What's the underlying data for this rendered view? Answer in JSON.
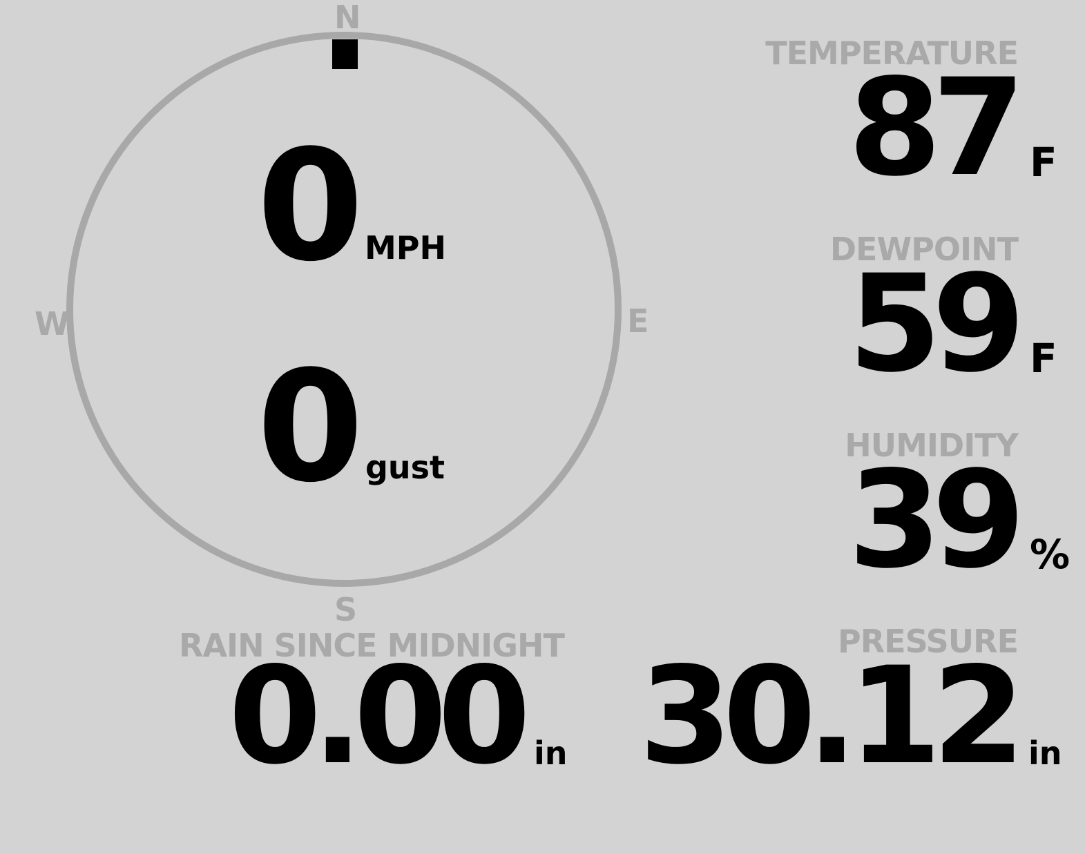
{
  "compass": {
    "north": "N",
    "south": "S",
    "east": "E",
    "west": "W",
    "wind_direction_deg": 0,
    "ring_color": "#a8a8a8",
    "indicator_color": "#000000"
  },
  "wind": {
    "speed": "0",
    "speed_unit": "MPH",
    "gust": "0",
    "gust_unit": "gust"
  },
  "temperature": {
    "label": "TEMPERATURE",
    "value": "87",
    "unit": "F"
  },
  "dewpoint": {
    "label": "DEWPOINT",
    "value": "59",
    "unit": "F"
  },
  "humidity": {
    "label": "HUMIDITY",
    "value": "39",
    "unit": "%"
  },
  "rain": {
    "label": "RAIN SINCE MIDNIGHT",
    "value": "0.00",
    "unit": "in"
  },
  "pressure": {
    "label": "PRESSURE",
    "value": "30.12",
    "unit": "in"
  },
  "colors": {
    "background": "#d3d3d3",
    "label": "#a9a9a9",
    "value": "#000000"
  }
}
